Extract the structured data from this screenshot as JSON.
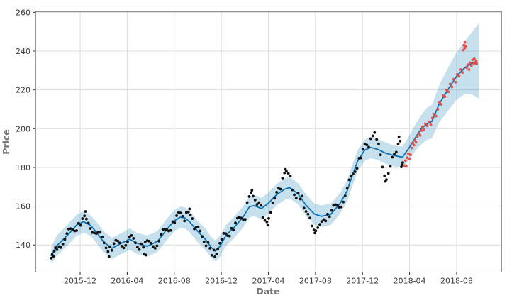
{
  "figure": {
    "background": "#ffffff"
  },
  "chart_data": {
    "type": "scatter",
    "description": "Time-series forecast plot: black dots = observed training prices, blue line = model trend/forecast, shaded band = uncertainty interval, red dots = actual prices in forecast period",
    "title": "",
    "xlabel": "Date",
    "ylabel": "Price",
    "x_unit": "months since 2015-09-01",
    "xlim": [
      -0.8,
      38.8
    ],
    "ylim": [
      126,
      260.5
    ],
    "grid": true,
    "legend": null,
    "x_ticks": [
      {
        "m": 3,
        "label": "2015-12"
      },
      {
        "m": 7,
        "label": "2016-04"
      },
      {
        "m": 11,
        "label": "2016-08"
      },
      {
        "m": 15,
        "label": "2016-12"
      },
      {
        "m": 19,
        "label": "2017-04"
      },
      {
        "m": 23,
        "label": "2017-08"
      },
      {
        "m": 27,
        "label": "2017-12"
      },
      {
        "m": 31,
        "label": "2018-04"
      },
      {
        "m": 35,
        "label": "2018-08"
      }
    ],
    "y_ticks": [
      140,
      160,
      180,
      200,
      220,
      240,
      260
    ],
    "colors": {
      "trend_line": "#0d72b2",
      "band_fill": "#0072b2",
      "band_opacity": 0.22,
      "train_points": "#111111",
      "test_points": "#e6453d",
      "grid": "#dedede",
      "spine": "#2e2e2e",
      "tick_label": "#3a3a3a",
      "axis_label": "#757575"
    },
    "trend": {
      "m": [
        0.55,
        1.0,
        2.0,
        2.7,
        3.3,
        3.9,
        4.4,
        5.0,
        5.7,
        6.6,
        7.2,
        7.8,
        8.7,
        9.6,
        10.3,
        11.0,
        11.5,
        11.9,
        12.3,
        13.0,
        13.7,
        14.1,
        14.5,
        14.9,
        15.4,
        16.0,
        16.8,
        17.4,
        17.8,
        18.4,
        19.0,
        19.7,
        20.4,
        20.8,
        21.5,
        22.2,
        22.9,
        23.5,
        24.3,
        25.1,
        25.7,
        26.0,
        26.6,
        27.2,
        27.7,
        28.3,
        29.0,
        29.8,
        30.4,
        31.0,
        31.4,
        32.0,
        32.5,
        32.9,
        33.5,
        34.3,
        35.0,
        35.7,
        36.3,
        36.7
      ],
      "y": [
        134.5,
        139.5,
        145.5,
        150.3,
        152.0,
        150.0,
        146.5,
        141.5,
        138.3,
        141.2,
        143.0,
        141.0,
        139.3,
        142.0,
        147.5,
        152.5,
        154.3,
        154.0,
        152.0,
        147.0,
        142.5,
        139.0,
        136.8,
        139.5,
        145.0,
        148.5,
        154.0,
        159.8,
        160.3,
        158.8,
        161.5,
        166.0,
        168.8,
        169.6,
        166.5,
        160.5,
        156.0,
        154.8,
        155.8,
        161.5,
        168.0,
        173.5,
        183.5,
        189.0,
        190.3,
        189.3,
        187.3,
        186.0,
        185.3,
        190.5,
        194.5,
        200.0,
        202.5,
        203.8,
        212.5,
        220.5,
        227.0,
        231.5,
        233.8,
        234.5
      ]
    },
    "band": {
      "m": [
        0.55,
        1.0,
        2.0,
        2.7,
        3.3,
        3.9,
        4.4,
        5.0,
        5.7,
        6.6,
        7.2,
        7.8,
        8.7,
        9.6,
        10.3,
        11.0,
        11.5,
        11.9,
        12.3,
        13.0,
        13.7,
        14.1,
        14.5,
        14.9,
        15.4,
        16.0,
        16.8,
        17.4,
        17.8,
        18.4,
        19.0,
        19.7,
        20.4,
        20.8,
        21.5,
        22.2,
        22.9,
        23.5,
        24.3,
        25.1,
        25.7,
        26.0,
        26.6,
        27.2,
        27.7,
        28.3,
        29.0,
        29.8,
        30.4,
        31.0,
        31.4,
        32.0,
        32.5,
        32.9,
        33.5,
        34.3,
        35.0,
        35.7,
        36.3,
        36.7,
        36.9
      ],
      "lo": [
        130.2,
        134.4,
        140.2,
        144.8,
        146.4,
        144.6,
        140.9,
        136.1,
        132.8,
        135.6,
        137.6,
        135.4,
        133.9,
        136.5,
        142.0,
        147.1,
        148.8,
        148.5,
        146.6,
        141.4,
        137.0,
        133.6,
        131.4,
        134.0,
        139.6,
        143.0,
        148.6,
        154.3,
        154.8,
        153.3,
        156.0,
        160.5,
        163.3,
        164.0,
        161.1,
        155.0,
        150.5,
        149.3,
        150.4,
        156.1,
        162.5,
        168.0,
        178.1,
        183.5,
        184.8,
        183.9,
        181.8,
        180.2,
        179.8,
        184.5,
        187.9,
        192.0,
        194.4,
        195.0,
        203.0,
        209.5,
        214.9,
        218.0,
        217.7,
        216.2,
        215.5
      ],
      "hi": [
        139.0,
        144.8,
        151.0,
        155.7,
        157.4,
        155.2,
        151.8,
        147.0,
        143.7,
        146.5,
        148.6,
        146.4,
        144.8,
        147.4,
        153.1,
        158.0,
        159.7,
        159.4,
        157.5,
        152.4,
        148.1,
        144.4,
        142.3,
        145.0,
        150.4,
        154.0,
        159.5,
        165.2,
        165.9,
        164.2,
        167.0,
        171.4,
        174.4,
        175.2,
        172.0,
        166.1,
        161.4,
        160.4,
        161.3,
        167.0,
        173.4,
        179.0,
        189.0,
        194.5,
        195.8,
        194.8,
        192.8,
        191.1,
        190.8,
        196.7,
        201.3,
        207.2,
        210.8,
        212.3,
        222.2,
        231.8,
        239.4,
        245.2,
        249.8,
        252.8,
        254.5
      ]
    },
    "actual_train_points": [
      [
        0.55,
        133.2
      ],
      [
        0.62,
        135.1
      ],
      [
        0.72,
        134.1
      ],
      [
        0.8,
        136.8
      ],
      [
        0.9,
        138.6
      ],
      [
        1.03,
        137.6
      ],
      [
        1.2,
        139.1
      ],
      [
        1.37,
        138.7
      ],
      [
        1.53,
        140.5
      ],
      [
        1.7,
        142.9
      ],
      [
        1.87,
        145.9
      ],
      [
        2.03,
        148.2
      ],
      [
        2.2,
        148.4
      ],
      [
        2.37,
        147.8
      ],
      [
        2.53,
        147.2
      ],
      [
        2.7,
        147.4
      ],
      [
        2.87,
        151.2
      ],
      [
        3.03,
        150.1
      ],
      [
        3.2,
        153.6
      ],
      [
        3.37,
        155.0
      ],
      [
        3.45,
        157.3
      ],
      [
        3.53,
        153.4
      ],
      [
        3.7,
        151.3
      ],
      [
        3.87,
        148.5
      ],
      [
        4.03,
        146.4
      ],
      [
        4.2,
        146.2
      ],
      [
        4.37,
        145.9
      ],
      [
        4.53,
        146.6
      ],
      [
        4.7,
        146.5
      ],
      [
        4.87,
        144.1
      ],
      [
        5.03,
        141.1
      ],
      [
        5.2,
        138.5
      ],
      [
        5.37,
        136.6
      ],
      [
        5.45,
        134.0
      ],
      [
        5.53,
        139.1
      ],
      [
        5.7,
        137.2
      ],
      [
        5.87,
        140.7
      ],
      [
        6.03,
        142.4
      ],
      [
        6.2,
        142.1
      ],
      [
        6.37,
        141.1
      ],
      [
        6.53,
        139.4
      ],
      [
        6.7,
        138.5
      ],
      [
        6.87,
        139.8
      ],
      [
        7.03,
        141.7
      ],
      [
        7.2,
        144.2
      ],
      [
        7.37,
        144.9
      ],
      [
        7.53,
        143.4
      ],
      [
        7.7,
        141.1
      ],
      [
        7.87,
        138.9
      ],
      [
        8.03,
        137.6
      ],
      [
        8.2,
        140.6
      ],
      [
        8.37,
        138.8
      ],
      [
        8.45,
        135.2
      ],
      [
        8.53,
        141.5
      ],
      [
        8.6,
        134.8
      ],
      [
        8.7,
        142.3
      ],
      [
        8.87,
        142.0
      ],
      [
        9.03,
        140.9
      ],
      [
        9.2,
        139.2
      ],
      [
        9.37,
        138.3
      ],
      [
        9.53,
        139.6
      ],
      [
        9.7,
        142.0
      ],
      [
        9.87,
        145.3
      ],
      [
        10.03,
        147.9
      ],
      [
        10.2,
        148.2
      ],
      [
        10.37,
        147.8
      ],
      [
        10.53,
        147.2
      ],
      [
        10.7,
        147.5
      ],
      [
        10.87,
        152.0
      ],
      [
        11.03,
        151.5
      ],
      [
        11.2,
        155.1
      ],
      [
        11.37,
        156.8
      ],
      [
        11.53,
        156.5
      ],
      [
        11.7,
        154.8
      ],
      [
        11.87,
        152.4
      ],
      [
        12.03,
        156.8
      ],
      [
        12.2,
        157.0
      ],
      [
        12.3,
        158.6
      ],
      [
        12.37,
        155.5
      ],
      [
        12.53,
        153.6
      ],
      [
        12.7,
        148.3
      ],
      [
        12.87,
        149.1
      ],
      [
        13.03,
        149.3
      ],
      [
        13.2,
        147.2
      ],
      [
        13.37,
        144.4
      ],
      [
        13.53,
        141.7
      ],
      [
        13.7,
        139.6
      ],
      [
        13.87,
        141.3
      ],
      [
        14.03,
        138.3
      ],
      [
        14.2,
        134.7
      ],
      [
        14.37,
        137.4
      ],
      [
        14.45,
        133.9
      ],
      [
        14.6,
        135.3
      ],
      [
        14.7,
        138.0
      ],
      [
        14.87,
        140.9
      ],
      [
        15.03,
        142.9
      ],
      [
        15.2,
        146.0
      ],
      [
        15.37,
        145.9
      ],
      [
        15.53,
        144.8
      ],
      [
        15.7,
        144.6
      ],
      [
        15.87,
        148.6
      ],
      [
        16.03,
        147.7
      ],
      [
        16.2,
        151.4
      ],
      [
        16.37,
        153.8
      ],
      [
        16.53,
        154.2
      ],
      [
        16.7,
        153.9
      ],
      [
        16.87,
        153.1
      ],
      [
        17.03,
        153.2
      ],
      [
        17.2,
        161.9
      ],
      [
        17.37,
        165.0
      ],
      [
        17.53,
        167.0
      ],
      [
        17.6,
        168.2
      ],
      [
        17.7,
        165.2
      ],
      [
        17.87,
        163.2
      ],
      [
        18.03,
        160.9
      ],
      [
        18.2,
        161.8
      ],
      [
        18.37,
        160.4
      ],
      [
        18.53,
        154.1
      ],
      [
        18.7,
        152.7
      ],
      [
        18.87,
        151.9
      ],
      [
        18.95,
        150.2
      ],
      [
        19.03,
        153.7
      ],
      [
        19.2,
        156.8
      ],
      [
        19.37,
        161.7
      ],
      [
        19.53,
        164.1
      ],
      [
        19.7,
        167.2
      ],
      [
        19.87,
        169.2
      ],
      [
        20.03,
        168.8
      ],
      [
        20.2,
        174.5
      ],
      [
        20.37,
        177.2
      ],
      [
        20.45,
        179.0
      ],
      [
        20.53,
        178.0
      ],
      [
        20.7,
        176.9
      ],
      [
        20.87,
        175.5
      ],
      [
        21.03,
        168.4
      ],
      [
        21.2,
        165.9
      ],
      [
        21.37,
        164.2
      ],
      [
        21.53,
        166.8
      ],
      [
        21.7,
        163.7
      ],
      [
        21.87,
        165.2
      ],
      [
        22.03,
        159.0
      ],
      [
        22.2,
        157.3
      ],
      [
        22.37,
        155.9
      ],
      [
        22.53,
        153.9
      ],
      [
        22.7,
        149.8
      ],
      [
        22.87,
        147.7
      ],
      [
        22.95,
        146.2
      ],
      [
        23.03,
        147.3
      ],
      [
        23.2,
        148.9
      ],
      [
        23.37,
        150.6
      ],
      [
        23.53,
        152.1
      ],
      [
        23.7,
        153.1
      ],
      [
        23.87,
        152.4
      ],
      [
        24.03,
        155.9
      ],
      [
        24.2,
        154.6
      ],
      [
        24.37,
        157.8
      ],
      [
        24.53,
        160.4
      ],
      [
        24.7,
        160.8
      ],
      [
        24.87,
        160.4
      ],
      [
        25.03,
        159.4
      ],
      [
        25.2,
        159.6
      ],
      [
        25.37,
        162.2
      ],
      [
        25.53,
        165.4
      ],
      [
        25.7,
        169.2
      ],
      [
        25.87,
        173.6
      ],
      [
        26.03,
        175.5
      ],
      [
        26.2,
        176.6
      ],
      [
        26.37,
        177.8
      ],
      [
        26.53,
        179.5
      ],
      [
        26.7,
        184.8
      ],
      [
        26.87,
        184.9
      ],
      [
        27.03,
        189.3
      ],
      [
        27.2,
        192.0
      ],
      [
        27.37,
        191.6
      ],
      [
        27.53,
        190.5
      ],
      [
        27.7,
        194.8
      ],
      [
        27.87,
        196.3
      ],
      [
        28.03,
        198.0
      ],
      [
        28.2,
        194.5
      ],
      [
        28.37,
        192.2
      ],
      [
        28.53,
        186.5
      ],
      [
        28.7,
        180.2
      ],
      [
        28.87,
        175.7
      ],
      [
        28.95,
        172.8
      ],
      [
        29.03,
        173.7
      ],
      [
        29.2,
        176.9
      ],
      [
        29.37,
        180.5
      ],
      [
        29.53,
        185.3
      ],
      [
        29.7,
        186.9
      ],
      [
        29.87,
        187.9
      ],
      [
        30.03,
        192.2
      ],
      [
        30.1,
        195.8
      ],
      [
        30.2,
        193.6
      ],
      [
        30.3,
        180.3
      ],
      [
        30.37,
        181.4
      ],
      [
        30.42,
        182.5
      ]
    ],
    "actual_test_points": [
      [
        30.55,
        181.0
      ],
      [
        30.65,
        183.5
      ],
      [
        30.72,
        180.5
      ],
      [
        30.8,
        185.0
      ],
      [
        30.9,
        187.0
      ],
      [
        31.0,
        184.5
      ],
      [
        31.08,
        186.5
      ],
      [
        31.18,
        190.0
      ],
      [
        31.28,
        192.5
      ],
      [
        31.37,
        191.5
      ],
      [
        31.45,
        194.0
      ],
      [
        31.55,
        193.0
      ],
      [
        31.65,
        196.0
      ],
      [
        31.78,
        197.5
      ],
      [
        31.9,
        196.5
      ],
      [
        32.0,
        199.0
      ],
      [
        32.1,
        201.0
      ],
      [
        32.2,
        199.5
      ],
      [
        32.35,
        202.5
      ],
      [
        32.5,
        201.5
      ],
      [
        32.65,
        203.5
      ],
      [
        32.8,
        202.0
      ],
      [
        32.95,
        205.5
      ],
      [
        33.1,
        207.5
      ],
      [
        33.25,
        206.5
      ],
      [
        33.4,
        210.0
      ],
      [
        33.55,
        213.5
      ],
      [
        33.7,
        212.5
      ],
      [
        33.85,
        217.0
      ],
      [
        34.0,
        216.5
      ],
      [
        34.15,
        220.0
      ],
      [
        34.3,
        219.0
      ],
      [
        34.45,
        223.0
      ],
      [
        34.6,
        221.5
      ],
      [
        34.75,
        225.5
      ],
      [
        34.9,
        224.0
      ],
      [
        35.05,
        228.0
      ],
      [
        35.2,
        227.0
      ],
      [
        35.35,
        230.5
      ],
      [
        35.5,
        229.0
      ],
      [
        35.55,
        240.5
      ],
      [
        35.62,
        243.0
      ],
      [
        35.68,
        241.5
      ],
      [
        35.7,
        244.5
      ],
      [
        35.78,
        242.5
      ],
      [
        35.85,
        231.5
      ],
      [
        35.95,
        233.0
      ],
      [
        36.05,
        230.5
      ],
      [
        36.15,
        234.0
      ],
      [
        36.25,
        232.5
      ],
      [
        36.35,
        235.5
      ],
      [
        36.45,
        233.5
      ],
      [
        36.5,
        236.0
      ],
      [
        36.58,
        234.0
      ],
      [
        36.65,
        235.0
      ],
      [
        36.7,
        233.5
      ]
    ]
  }
}
